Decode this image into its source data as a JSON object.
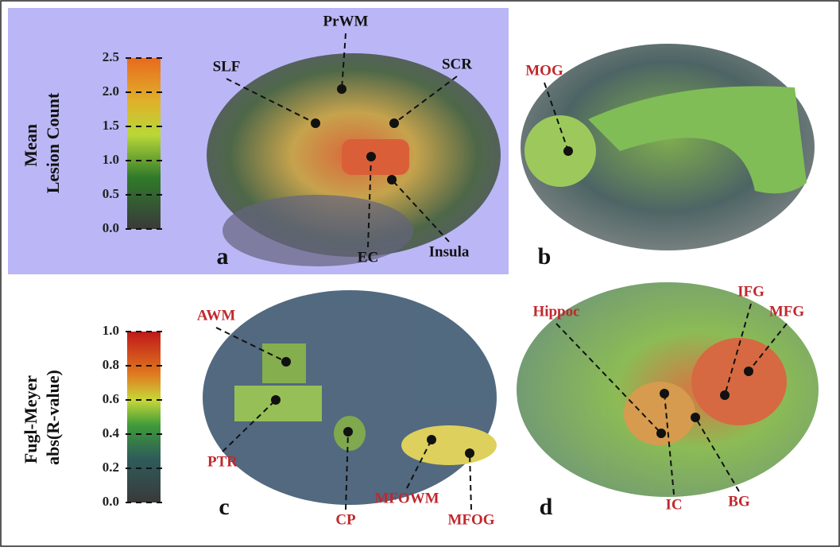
{
  "colorbars": [
    {
      "title": [
        "Mean",
        "Lesion Count"
      ],
      "ticks": [
        {
          "value": 0,
          "label": "0.0"
        },
        {
          "value": 0.5,
          "label": "0.5"
        },
        {
          "value": 1,
          "label": "1.0"
        },
        {
          "value": 1.5,
          "label": "1.5"
        },
        {
          "value": 2,
          "label": "2.0"
        },
        {
          "value": 2.5,
          "label": "2.5"
        }
      ]
    },
    {
      "title": [
        "Fugl-Meyer",
        "abs(R-value)"
      ],
      "ticks": [
        {
          "value": 0,
          "label": "0.0"
        },
        {
          "value": 0.2,
          "label": "0.2"
        },
        {
          "value": 0.4,
          "label": "0.4"
        },
        {
          "value": 0.6,
          "label": "0.6"
        },
        {
          "value": 0.8,
          "label": "0.8"
        },
        {
          "value": 1,
          "label": "1.0"
        }
      ]
    }
  ],
  "panels": [
    {
      "label": "a",
      "regions": [
        "PrWM",
        "SLF",
        "SCR",
        "EC",
        "Insula"
      ]
    },
    {
      "label": "b",
      "regions": [
        "MOG"
      ]
    },
    {
      "label": "c",
      "regions": [
        "AWM",
        "PTR",
        "CP",
        "MFOWM",
        "MFOG"
      ]
    },
    {
      "label": "d",
      "regions": [
        "Hippoc",
        "IFG",
        "MFG",
        "IC",
        "BG"
      ]
    }
  ]
}
